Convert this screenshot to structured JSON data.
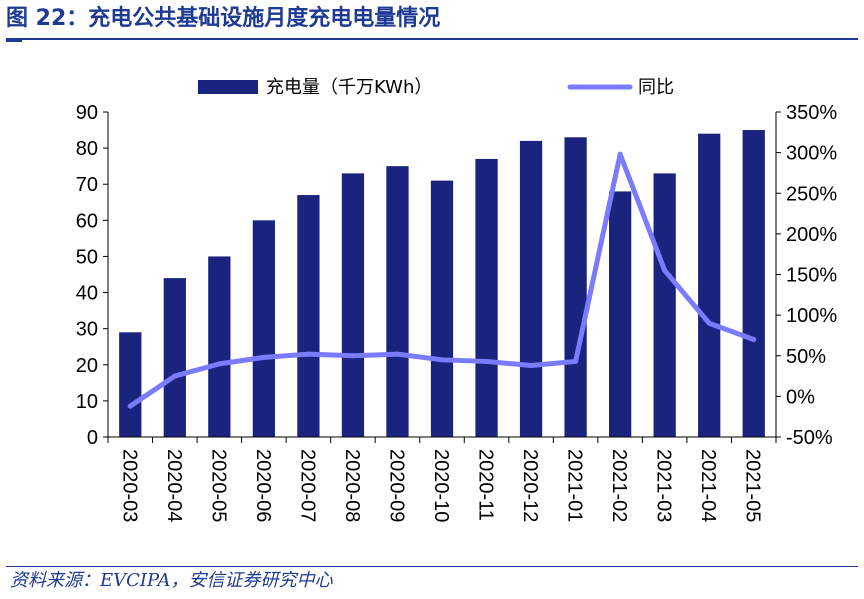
{
  "figure": {
    "title": "图 22：充电公共基础设施月度充电电量情况",
    "source": "资料来源：EVCIPA，安信证券研究中心"
  },
  "colors": {
    "bar": "#1a237e",
    "line": "#7b7bff",
    "title": "#1f3a93",
    "axis": "#000000"
  },
  "chart_data": {
    "type": "bar",
    "legend_position": "top",
    "grid": false,
    "categories": [
      "2020-03",
      "2020-04",
      "2020-05",
      "2020-06",
      "2020-07",
      "2020-08",
      "2020-09",
      "2020-10",
      "2020-11",
      "2020-12",
      "2021-01",
      "2021-02",
      "2021-03",
      "2021-04",
      "2021-05"
    ],
    "series": [
      {
        "name": "充电量（千万KWh）",
        "type": "bar",
        "axis": "left",
        "values": [
          29,
          44,
          50,
          60,
          67,
          73,
          75,
          71,
          77,
          82,
          83,
          68,
          73,
          84,
          85
        ]
      },
      {
        "name": "同比",
        "type": "line",
        "axis": "right",
        "values": [
          -12,
          25,
          40,
          48,
          52,
          50,
          52,
          45,
          43,
          38,
          43,
          298,
          155,
          90,
          70
        ]
      }
    ],
    "y_left": {
      "ylim": [
        0,
        90
      ],
      "ticks": [
        "0",
        "10",
        "20",
        "30",
        "40",
        "50",
        "60",
        "70",
        "80",
        "90"
      ]
    },
    "y_right": {
      "ylim": [
        -50,
        350
      ],
      "ticks": [
        "-50%",
        "0%",
        "50%",
        "100%",
        "150%",
        "200%",
        "250%",
        "300%",
        "350%"
      ]
    }
  }
}
